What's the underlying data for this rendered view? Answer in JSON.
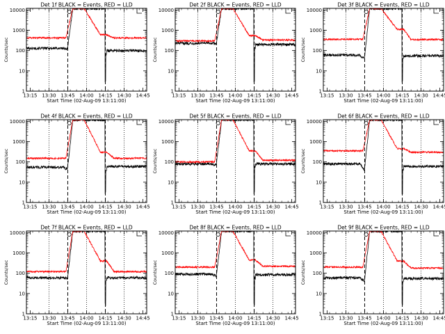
{
  "chart_data": {
    "type": "line",
    "yscale": "log",
    "ylabel": "Counts/sec",
    "xlabel": "Start Time (02-Aug-09 13:11:00)",
    "xlim": [
      "13:12",
      "14:48"
    ],
    "ylim": [
      1,
      12000
    ],
    "x_ticks": [
      "13:15",
      "13:30",
      "13:45",
      "14:00",
      "14:15",
      "14:30",
      "14:45"
    ],
    "y_ticks": [
      "1",
      "10",
      "100",
      "1000",
      "10000"
    ],
    "dotted_lines": [
      "13:30",
      "14:00",
      "14:30"
    ],
    "dashed_lines": [
      "13:45",
      "14:15"
    ],
    "colors": {
      "events": "#000000",
      "lld": "#ff0000"
    },
    "panels": [
      {
        "title": "Det 1f BLACK = Events, RED = LLD",
        "events": {
          "pre": 130,
          "rise_from": 120,
          "post": 100
        },
        "lld": {
          "pre": 420,
          "rise_from": 420,
          "peak": 12000,
          "shoulder": 600,
          "post": 420
        }
      },
      {
        "title": "Det 2f BLACK = Events, RED = LLD",
        "events": {
          "pre": 230,
          "rise_from": 220,
          "post": 200
        },
        "lld": {
          "pre": 300,
          "rise_from": 300,
          "peak": 12000,
          "shoulder": 550,
          "post": 330
        }
      },
      {
        "title": "Det 3f BLACK = Events, RED = LLD",
        "events": {
          "pre": 60,
          "rise_from": 40,
          "post": 55
        },
        "lld": {
          "pre": 360,
          "rise_from": 370,
          "peak": 12000,
          "shoulder": 1100,
          "post": 350
        }
      },
      {
        "title": "Det 4f BLACK = Events, RED = LLD",
        "events": {
          "pre": 55,
          "rise_from": 45,
          "post": 60
        },
        "lld": {
          "pre": 150,
          "rise_from": 150,
          "peak": 12000,
          "shoulder": 300,
          "post": 150
        }
      },
      {
        "title": "Det 5f BLACK = Events, RED = LLD",
        "events": {
          "pre": 80,
          "rise_from": 70,
          "post": 80
        },
        "lld": {
          "pre": 100,
          "rise_from": 100,
          "peak": 12000,
          "shoulder": 350,
          "post": 120
        }
      },
      {
        "title": "Det 6f BLACK = Events, RED = LLD",
        "events": {
          "pre": 80,
          "rise_from": 40,
          "post": 60
        },
        "lld": {
          "pre": 350,
          "rise_from": 320,
          "peak": 12000,
          "shoulder": 450,
          "post": 300
        }
      },
      {
        "title": "Det 7f BLACK = Events, RED = LLD",
        "events": {
          "pre": 60,
          "rise_from": 55,
          "post": 60
        },
        "lld": {
          "pre": 120,
          "rise_from": 120,
          "peak": 12000,
          "shoulder": 400,
          "post": 120
        }
      },
      {
        "title": "Det 8f BLACK = Events, RED = LLD",
        "events": {
          "pre": 90,
          "rise_from": 75,
          "post": 85
        },
        "lld": {
          "pre": 200,
          "rise_from": 200,
          "peak": 12000,
          "shoulder": 450,
          "post": 220
        }
      },
      {
        "title": "Det 9f BLACK = Events, RED = LLD",
        "events": {
          "pre": 60,
          "rise_from": 40,
          "post": 55
        },
        "lld": {
          "pre": 200,
          "rise_from": 200,
          "peak": 12000,
          "shoulder": 400,
          "post": 180
        }
      }
    ]
  }
}
